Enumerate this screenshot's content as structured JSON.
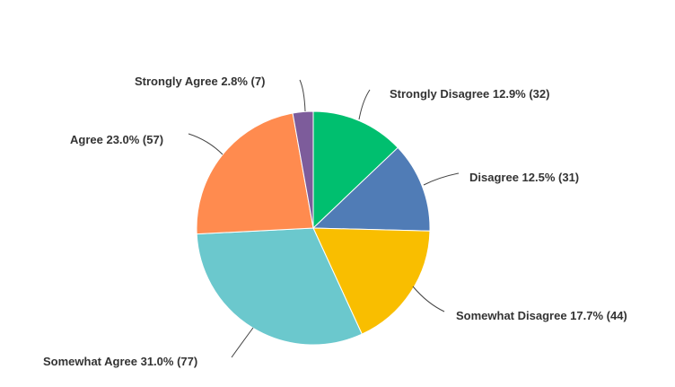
{
  "chart_data": {
    "type": "pie",
    "title": "",
    "start": "top",
    "direction": "clockwise",
    "slices": [
      {
        "label": "Strongly Disagree",
        "percent": 12.9,
        "count": 32,
        "color": "#00bf6f",
        "text": "Strongly Disagree 12.9% (32)"
      },
      {
        "label": "Disagree",
        "percent": 12.5,
        "count": 31,
        "color": "#507cb6",
        "text": "Disagree 12.5% (31)"
      },
      {
        "label": "Somewhat Disagree",
        "percent": 17.7,
        "count": 44,
        "color": "#f9be00",
        "text": "Somewhat Disagree 17.7% (44)"
      },
      {
        "label": "Somewhat Agree",
        "percent": 31.0,
        "count": 77,
        "color": "#6bc8cd",
        "text": "Somewhat Agree 31.0% (77)"
      },
      {
        "label": "Agree",
        "percent": 23.0,
        "count": 57,
        "color": "#ff8b4f",
        "text": "Agree 23.0% (57)"
      },
      {
        "label": "Strongly Agree",
        "percent": 2.8,
        "count": 7,
        "color": "#7d5c9b",
        "text": "Strongly Agree 2.8% (7)"
      }
    ]
  }
}
